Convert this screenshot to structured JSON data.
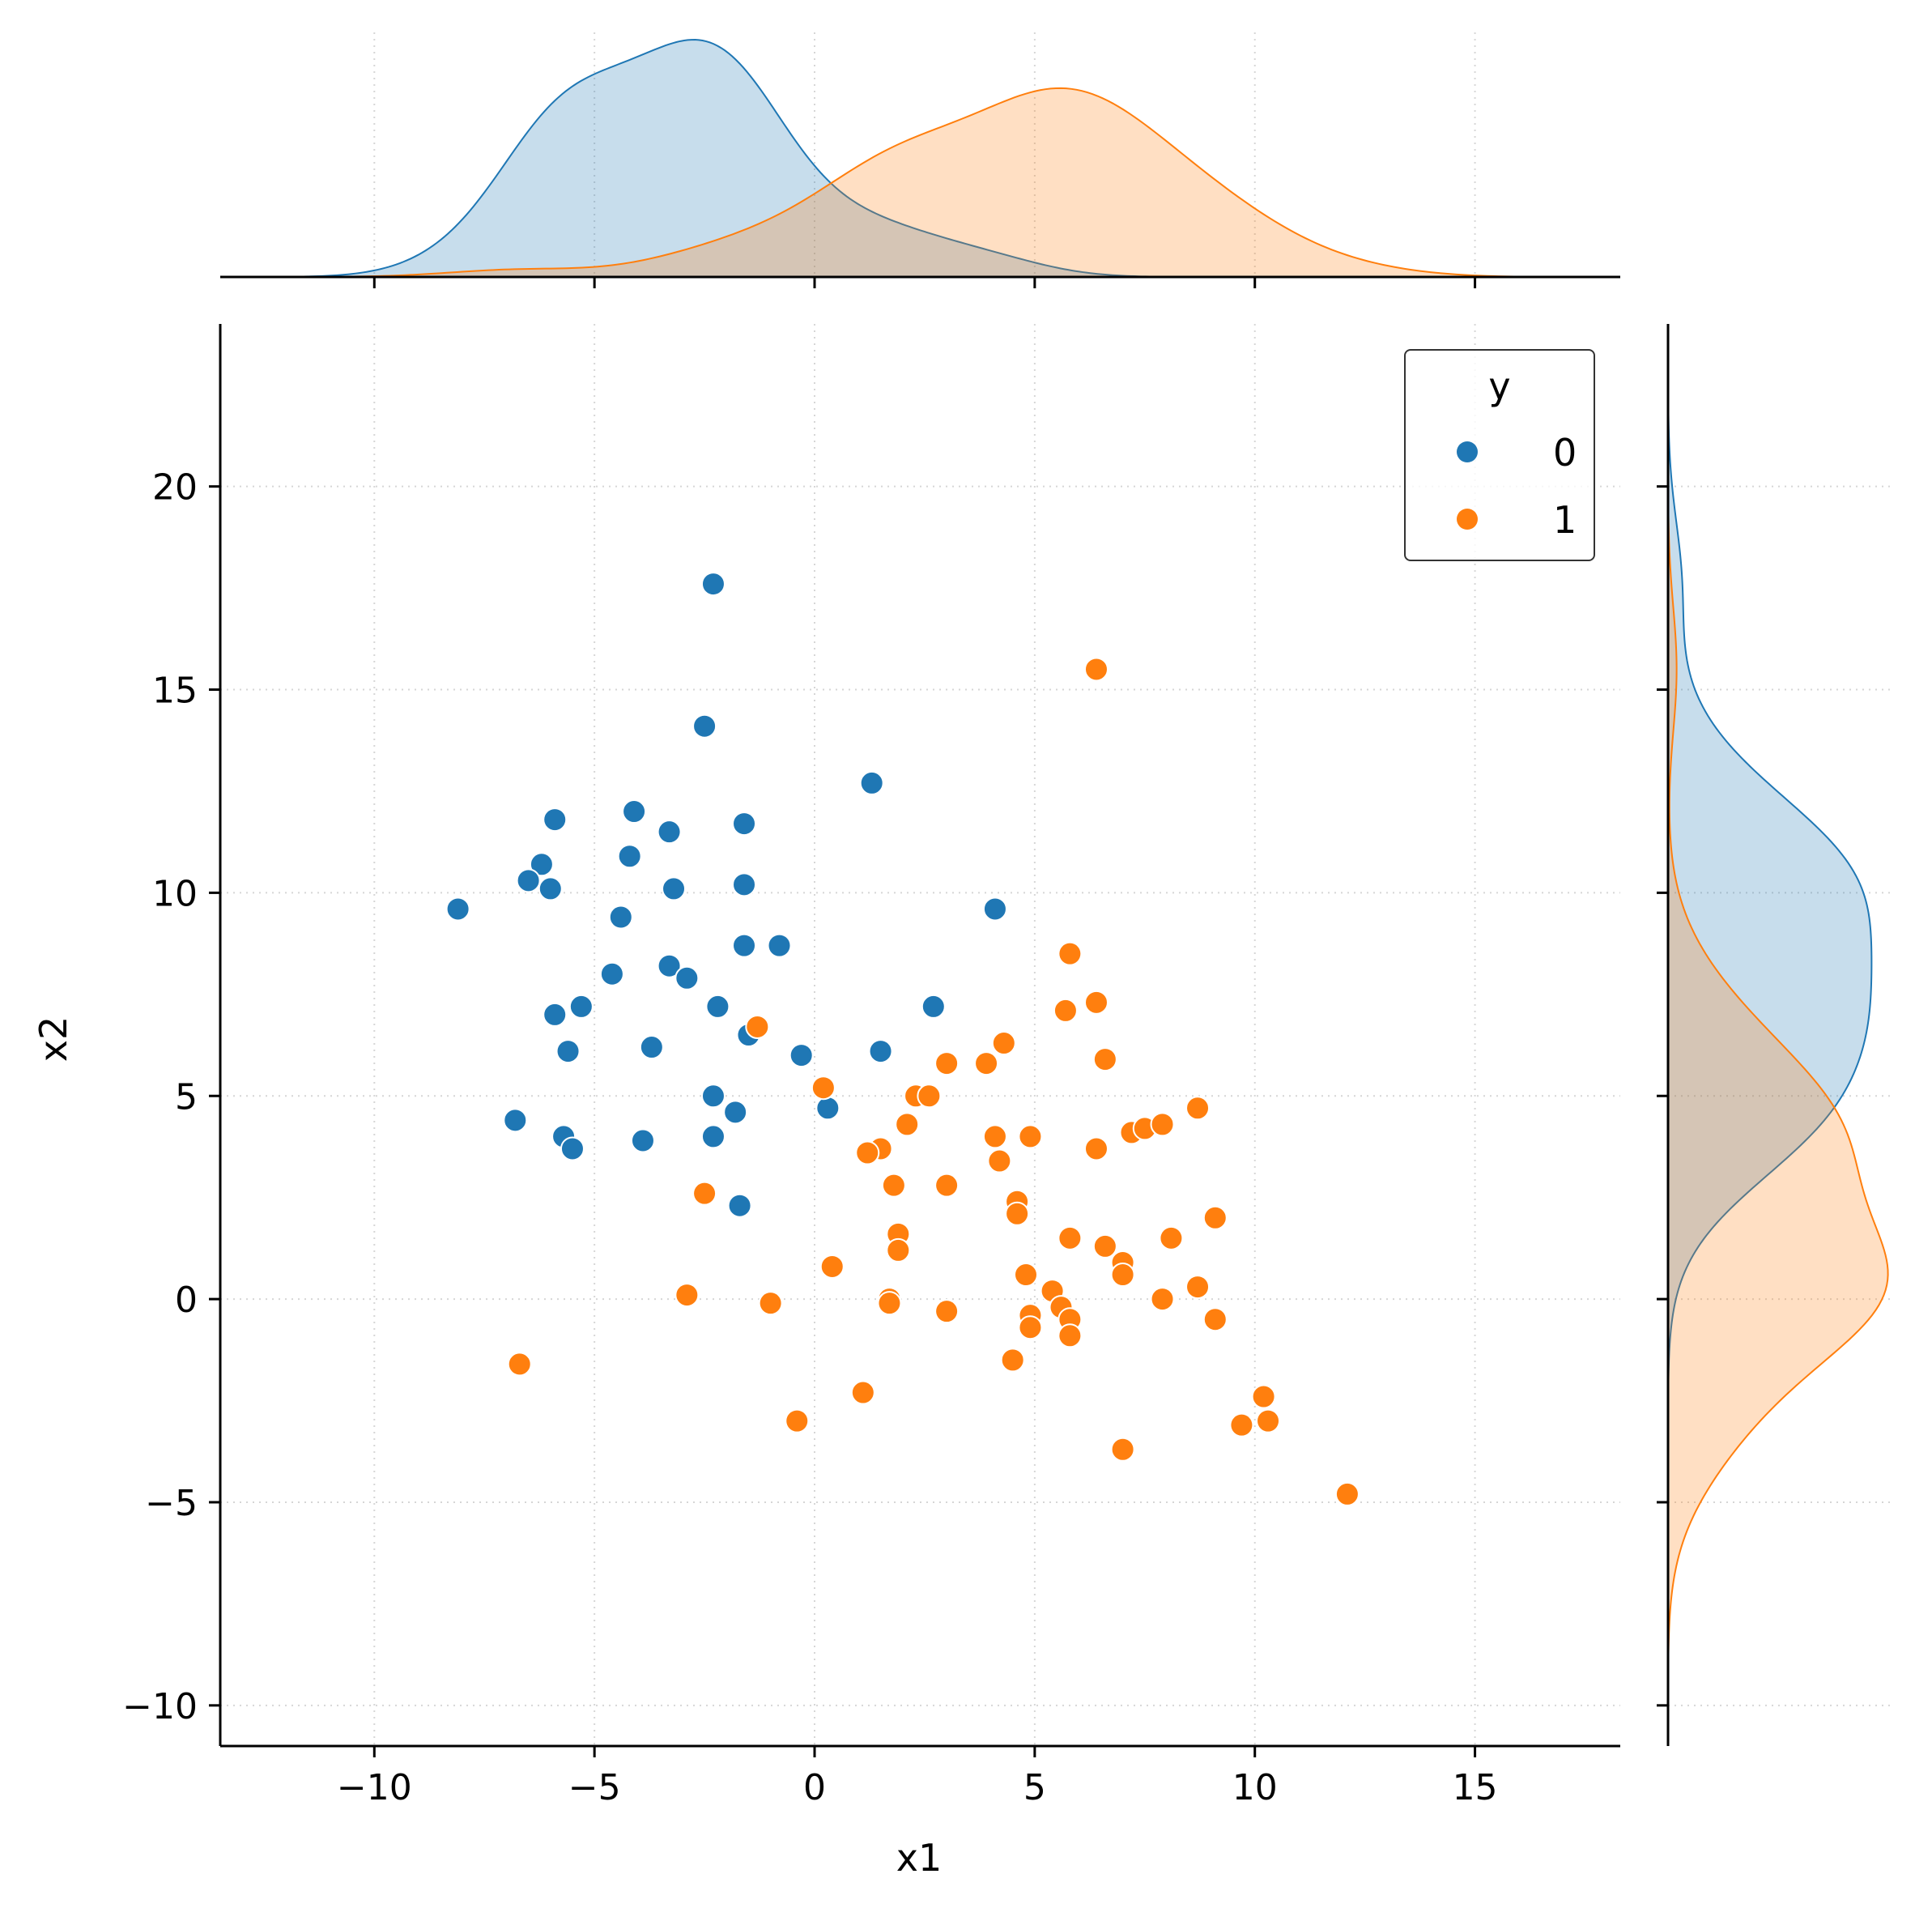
{
  "chart_data": {
    "type": "scatter",
    "subtype": "jointplot",
    "title": "",
    "xlabel": "x1",
    "ylabel": "x2",
    "xlim": [
      -13.5,
      18.3
    ],
    "ylim": [
      -11,
      24
    ],
    "xticks": [
      -10,
      -5,
      0,
      5,
      10,
      15
    ],
    "xtick_labels": [
      "−10",
      "−5",
      "0",
      "5",
      "10",
      "15"
    ],
    "yticks": [
      -10,
      -5,
      0,
      5,
      10,
      15,
      20
    ],
    "ytick_labels": [
      "−10",
      "−5",
      "0",
      "5",
      "10",
      "15",
      "20"
    ],
    "grid": true,
    "grid_style": "dotted",
    "marginals": "kde",
    "legend": {
      "title": "y",
      "position": "top-right",
      "entries": [
        "0",
        "1"
      ]
    },
    "colors": {
      "0": "#1f77b4",
      "1": "#ff7f0e",
      "overlap": "#c4c4be"
    },
    "series": [
      {
        "name": "0",
        "points": [
          [
            -2.3,
            17.6
          ],
          [
            -2.5,
            14.1
          ],
          [
            1.3,
            12.7
          ],
          [
            -5.9,
            11.8
          ],
          [
            -4.1,
            12.0
          ],
          [
            -3.3,
            11.5
          ],
          [
            -1.6,
            11.7
          ],
          [
            -6.2,
            10.7
          ],
          [
            -6.5,
            10.3
          ],
          [
            -6.0,
            10.1
          ],
          [
            -4.2,
            10.9
          ],
          [
            -3.2,
            10.1
          ],
          [
            -1.6,
            10.2
          ],
          [
            -8.1,
            9.6
          ],
          [
            4.1,
            9.6
          ],
          [
            -4.4,
            9.4
          ],
          [
            -1.6,
            8.7
          ],
          [
            -0.8,
            8.7
          ],
          [
            -3.3,
            8.2
          ],
          [
            -2.9,
            7.9
          ],
          [
            -4.6,
            8.0
          ],
          [
            -5.3,
            7.2
          ],
          [
            -5.9,
            7.0
          ],
          [
            -2.2,
            7.2
          ],
          [
            2.7,
            7.2
          ],
          [
            -1.5,
            6.5
          ],
          [
            -3.7,
            6.2
          ],
          [
            -5.6,
            6.1
          ],
          [
            -0.3,
            6.0
          ],
          [
            1.5,
            6.1
          ],
          [
            -2.3,
            5.0
          ],
          [
            -1.8,
            4.6
          ],
          [
            0.3,
            4.7
          ],
          [
            -6.8,
            4.4
          ],
          [
            -5.7,
            4.0
          ],
          [
            -5.5,
            3.7
          ],
          [
            -3.9,
            3.9
          ],
          [
            -2.3,
            4.0
          ],
          [
            -1.7,
            2.3
          ]
        ]
      },
      {
        "name": "1",
        "points": [
          [
            6.4,
            15.5
          ],
          [
            5.8,
            8.5
          ],
          [
            6.4,
            7.3
          ],
          [
            5.7,
            7.1
          ],
          [
            -1.3,
            6.7
          ],
          [
            4.3,
            6.3
          ],
          [
            6.6,
            5.9
          ],
          [
            3.0,
            5.8
          ],
          [
            3.9,
            5.8
          ],
          [
            0.2,
            5.2
          ],
          [
            2.3,
            5.0
          ],
          [
            2.6,
            5.0
          ],
          [
            8.7,
            4.7
          ],
          [
            2.1,
            4.3
          ],
          [
            7.2,
            4.1
          ],
          [
            7.5,
            4.2
          ],
          [
            7.9,
            4.3
          ],
          [
            4.1,
            4.0
          ],
          [
            4.9,
            4.0
          ],
          [
            6.4,
            3.7
          ],
          [
            1.5,
            3.7
          ],
          [
            1.2,
            3.6
          ],
          [
            4.2,
            3.4
          ],
          [
            1.8,
            2.8
          ],
          [
            3.0,
            2.8
          ],
          [
            -2.5,
            2.6
          ],
          [
            4.6,
            2.4
          ],
          [
            4.6,
            2.1
          ],
          [
            9.1,
            2.0
          ],
          [
            1.9,
            1.6
          ],
          [
            5.8,
            1.5
          ],
          [
            8.1,
            1.5
          ],
          [
            1.9,
            1.2
          ],
          [
            6.6,
            1.3
          ],
          [
            0.4,
            0.8
          ],
          [
            7.0,
            0.9
          ],
          [
            7.0,
            0.6
          ],
          [
            4.8,
            0.6
          ],
          [
            5.4,
            0.2
          ],
          [
            8.7,
            0.3
          ],
          [
            -2.9,
            0.1
          ],
          [
            1.7,
            0.0
          ],
          [
            7.9,
            0.0
          ],
          [
            -1.0,
            -0.1
          ],
          [
            1.7,
            -0.1
          ],
          [
            5.6,
            -0.2
          ],
          [
            3.0,
            -0.3
          ],
          [
            4.9,
            -0.4
          ],
          [
            5.8,
            -0.5
          ],
          [
            9.1,
            -0.5
          ],
          [
            4.9,
            -0.7
          ],
          [
            5.8,
            -0.9
          ],
          [
            -6.7,
            -1.6
          ],
          [
            4.5,
            -1.5
          ],
          [
            1.1,
            -2.3
          ],
          [
            10.2,
            -2.4
          ],
          [
            -0.4,
            -3.0
          ],
          [
            9.7,
            -3.1
          ],
          [
            10.3,
            -3.0
          ],
          [
            7.0,
            -3.7
          ],
          [
            12.1,
            -4.8
          ]
        ]
      }
    ]
  }
}
